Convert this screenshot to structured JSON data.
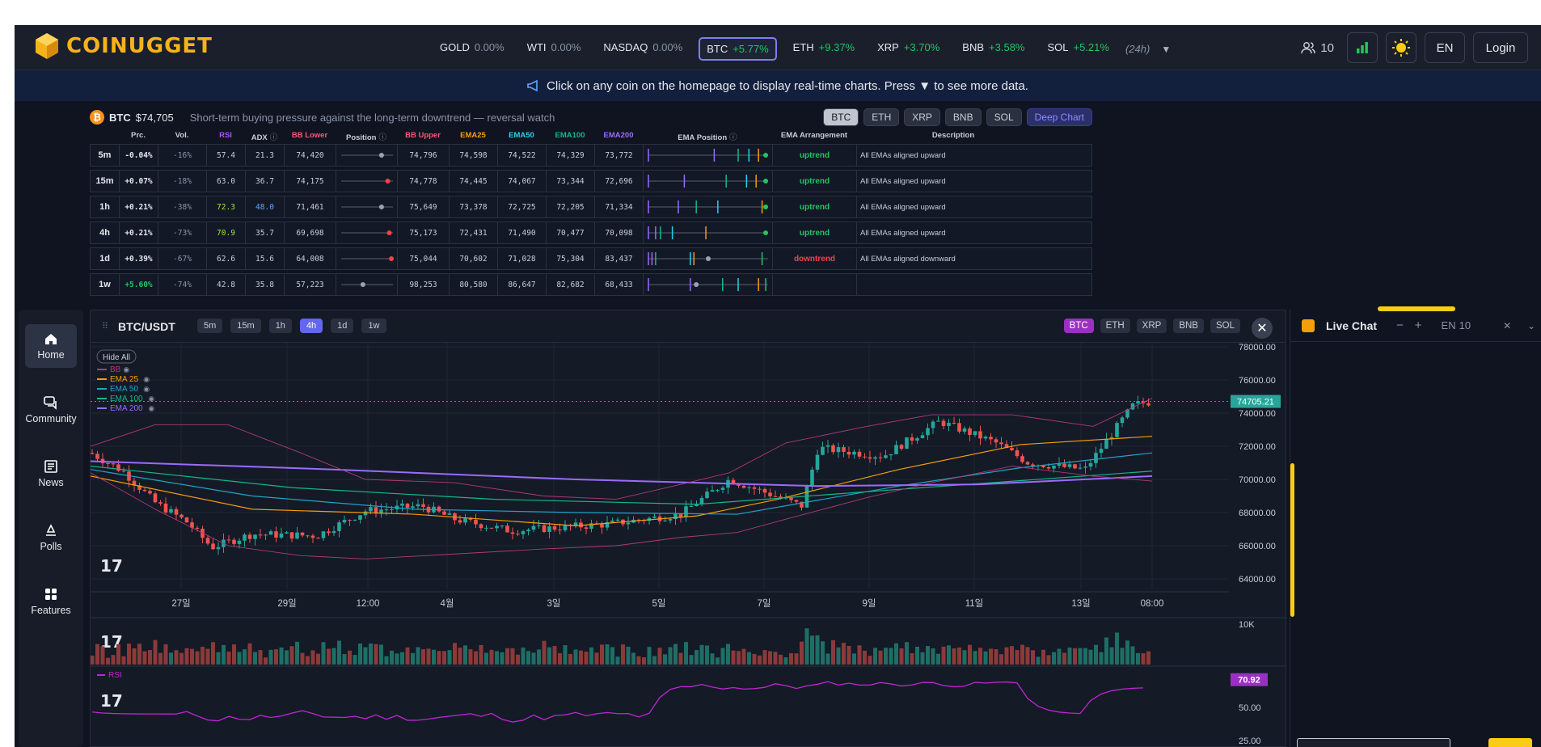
{
  "brand": {
    "name": "COINUGGET"
  },
  "tickers": [
    {
      "name": "GOLD",
      "change": "0.00%",
      "tone": "neutral",
      "active": false
    },
    {
      "name": "WTI",
      "change": "0.00%",
      "tone": "neutral",
      "active": false
    },
    {
      "name": "NASDAQ",
      "change": "0.00%",
      "tone": "neutral",
      "active": false
    },
    {
      "name": "BTC",
      "change": "+5.77%",
      "tone": "up",
      "active": true
    },
    {
      "name": "ETH",
      "change": "+9.37%",
      "tone": "up",
      "active": false
    },
    {
      "name": "XRP",
      "change": "+3.70%",
      "tone": "up",
      "active": false
    },
    {
      "name": "BNB",
      "change": "+3.58%",
      "tone": "up",
      "active": false
    },
    {
      "name": "SOL",
      "change": "+5.21%",
      "tone": "up",
      "active": false
    }
  ],
  "ticker_period": "(24h)",
  "header": {
    "users": "10",
    "lang": "EN",
    "login": "Login"
  },
  "notice": "Click on any coin on the homepage to display real-time charts.  Press ▼ to see more data.",
  "summary": {
    "coin": "BTC",
    "price": "$74,705",
    "headline": "Short-term buying pressure against the long-term downtrend — reversal watch",
    "tabs": [
      "BTC",
      "ETH",
      "XRP",
      "BNB",
      "SOL"
    ],
    "deep_label": "Deep Chart",
    "columns": [
      "Prc.",
      "Vol.",
      "RSI",
      "ADX",
      "BB Lower",
      "Position",
      "BB Upper",
      "EMA25",
      "EMA50",
      "EMA100",
      "EMA200",
      "EMA Position",
      "EMA Arrangement",
      "Description"
    ],
    "rows": [
      {
        "tf": "5m",
        "prc": "-0.04%",
        "vol": "-16%",
        "rsi": "57.4",
        "adx": "21.3",
        "bbl": "74,420",
        "pos": 0.78,
        "bbu": "74,796",
        "e25": "74,598",
        "e50": "74,522",
        "e100": "74,329",
        "e200": "73,772",
        "arr": "uptrend",
        "desc": "All EMAs aligned upward",
        "emapos": [
          0.55,
          0.75,
          0.84,
          0.92,
          0.98
        ]
      },
      {
        "tf": "15m",
        "prc": "+0.07%",
        "vol": "-18%",
        "rsi": "63.0",
        "adx": "36.7",
        "bbl": "74,175",
        "pos": 0.9,
        "bbu": "74,778",
        "e25": "74,445",
        "e50": "74,067",
        "e100": "73,344",
        "e200": "72,696",
        "arr": "uptrend",
        "desc": "All EMAs aligned upward",
        "emapos": [
          0.3,
          0.65,
          0.82,
          0.9,
          0.98
        ]
      },
      {
        "tf": "1h",
        "prc": "+0.21%",
        "vol": "-38%",
        "rsi": "72.3",
        "adx": "48.0",
        "bbl": "71,461",
        "pos": 0.78,
        "bbu": "75,649",
        "e25": "73,378",
        "e50": "72,725",
        "e100": "72,205",
        "e200": "71,334",
        "arr": "uptrend",
        "desc": "All EMAs aligned upward",
        "emapos": [
          0.25,
          0.4,
          0.58,
          0.95,
          0.98
        ]
      },
      {
        "tf": "4h",
        "prc": "+0.21%",
        "vol": "-73%",
        "rsi": "70.9",
        "adx": "35.7",
        "bbl": "69,698",
        "pos": 0.93,
        "bbu": "75,173",
        "e25": "72,431",
        "e50": "71,490",
        "e100": "70,477",
        "e200": "70,098",
        "arr": "uptrend",
        "desc": "All EMAs aligned upward",
        "emapos": [
          0.06,
          0.1,
          0.2,
          0.48,
          0.98
        ]
      },
      {
        "tf": "1d",
        "prc": "+0.39%",
        "vol": "-67%",
        "rsi": "62.6",
        "adx": "15.6",
        "bbl": "64,008",
        "pos": 0.97,
        "bbu": "75,044",
        "e25": "70,602",
        "e50": "71,028",
        "e100": "75,304",
        "e200": "83,437",
        "arr": "downtrend",
        "desc": "All EMAs aligned downward",
        "emapos": [
          0.03,
          0.06,
          0.35,
          0.38,
          0.95
        ]
      },
      {
        "tf": "1w",
        "prc": "+5.60%",
        "vol": "-74%",
        "rsi": "42.8",
        "adx": "35.8",
        "bbl": "57,223",
        "pos": 0.42,
        "bbu": "98,253",
        "e25": "80,580",
        "e50": "86,647",
        "e100": "82,682",
        "e200": "68,433",
        "arr": "",
        "desc": "",
        "emapos": [
          0.35,
          0.62,
          0.75,
          0.92,
          0.98
        ]
      }
    ]
  },
  "chart": {
    "pair": "BTC/USDT",
    "intervals": [
      "5m",
      "15m",
      "1h",
      "4h",
      "1d",
      "1w"
    ],
    "active_interval": "4h",
    "coins": [
      "BTC",
      "ETH",
      "XRP",
      "BNB",
      "SOL"
    ],
    "hide_all": "Hide All",
    "legend": [
      "BB",
      "EMA 25",
      "EMA 50",
      "EMA 100",
      "EMA 200"
    ],
    "last_price": "74705.21",
    "price_ticks": [
      "78000.00",
      "76000.00",
      "74000.00",
      "72000.00",
      "70000.00",
      "68000.00",
      "66000.00",
      "64000.00"
    ],
    "time_ticks": [
      "27일",
      "29일",
      "12:00",
      "4월",
      "3일",
      "5일",
      "7일",
      "9일",
      "11일",
      "13일",
      "08:00"
    ],
    "vol_tick": "10K",
    "rsi_label": "RSI",
    "rsi_value": "70.92",
    "rsi_ticks": [
      "50.00",
      "25.00"
    ]
  },
  "nav": [
    {
      "label": "Home",
      "icon": "home-icon"
    },
    {
      "label": "Community",
      "icon": "chat-icon"
    },
    {
      "label": "News",
      "icon": "news-icon"
    },
    {
      "label": "Polls",
      "icon": "poll-icon"
    },
    {
      "label": "Features",
      "icon": "grid-icon"
    }
  ],
  "chat": {
    "title": "Live Chat",
    "lang": "EN",
    "count": "10"
  },
  "colors": {
    "up": "#26a69a",
    "down": "#ef5350",
    "bb": "#b03a7a",
    "ema25": "#f59e0b",
    "ema50": "#22a3c9",
    "ema100": "#14b88a",
    "ema200": "#9b6bff",
    "rsi": "#c026d3"
  }
}
